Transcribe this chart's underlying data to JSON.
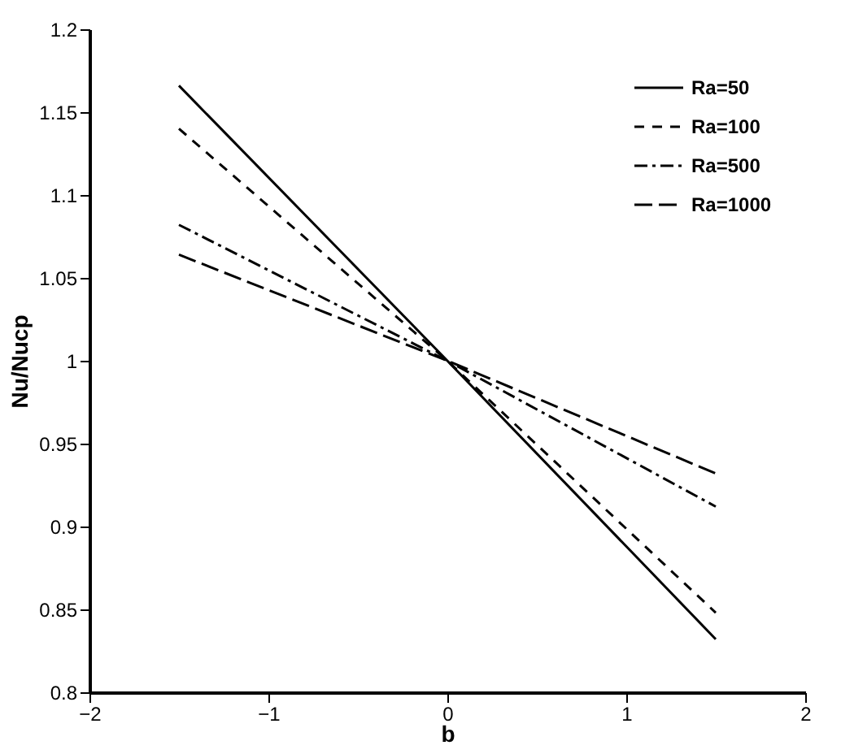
{
  "chart_data": {
    "type": "line",
    "xlabel": "b",
    "ylabel": "Nu/Nucp",
    "x": [
      -1.5,
      0,
      1.5
    ],
    "series": [
      {
        "name": "Ra=50",
        "color": "#000000",
        "line_style": "solid",
        "values": [
          1.166,
          1.0,
          0.832
        ]
      },
      {
        "name": "Ra=100",
        "color": "#000000",
        "line_style": "dashed",
        "values": [
          1.14,
          1.0,
          0.848
        ]
      },
      {
        "name": "Ra=500",
        "color": "#000000",
        "line_style": "dashdot",
        "values": [
          1.082,
          1.0,
          0.912
        ]
      },
      {
        "name": "Ra=1000",
        "color": "#000000",
        "line_style": "longdash",
        "values": [
          1.064,
          1.0,
          0.932
        ]
      }
    ],
    "xlim": [
      -2,
      2
    ],
    "ylim": [
      0.8,
      1.2
    ],
    "xticks": [
      -2,
      -1,
      0,
      1,
      2
    ],
    "yticks": [
      0.8,
      0.85,
      0.9,
      0.95,
      1,
      1.05,
      1.1,
      1.15,
      1.2
    ],
    "legend": "top right",
    "grid": false
  }
}
